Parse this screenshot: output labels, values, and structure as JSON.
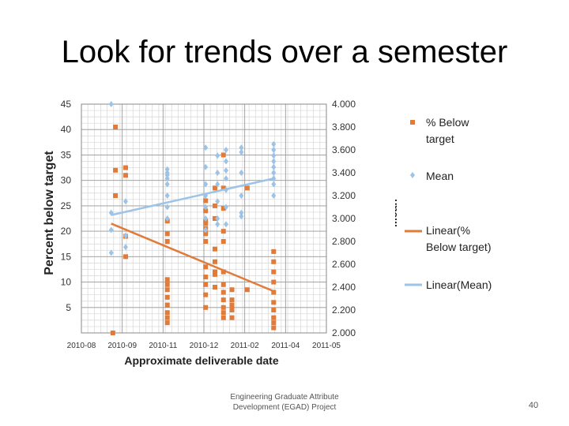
{
  "slide": {
    "title": "Look for trends over a semester",
    "footer_line1": "Engineering Graduate Attribute",
    "footer_line2": "Development (EGAD) Project",
    "page_number": "40"
  },
  "chart_data": {
    "type": "scatter",
    "xlabel": "Approximate deliverable date",
    "ylabel": "Percent below target",
    "y2label": "Mean",
    "x_ticks": [
      "2010-08",
      "2010-09",
      "2010-11",
      "2010-12",
      "2011-02",
      "2011-04",
      "2011-05"
    ],
    "xlim": [
      "2010-08-01",
      "2011-05-16"
    ],
    "y_ticks": [
      5,
      10,
      15,
      20,
      25,
      30,
      35,
      40,
      45
    ],
    "ylim": [
      0,
      45
    ],
    "y2_ticks": [
      "2.000",
      "2.200",
      "2.400",
      "2.600",
      "2.800",
      "3.000",
      "3.200",
      "3.400",
      "3.600",
      "3.800",
      "4.000"
    ],
    "y2lim": [
      2.0,
      4.0
    ],
    "grid": true,
    "legend_position": "right",
    "colors": {
      "below": "#e07b39",
      "mean": "#9dc3e6",
      "trend_below": "#e07b39",
      "trend_mean": "#9dc3e6"
    },
    "series": [
      {
        "name": "% Below target",
        "axis": "left",
        "marker": "square",
        "points": [
          [
            "2010-09-10",
            40.5
          ],
          [
            "2010-09-10",
            32
          ],
          [
            "2010-09-10",
            27
          ],
          [
            "2010-09-22",
            32.5
          ],
          [
            "2010-09-22",
            31
          ],
          [
            "2010-09-22",
            19
          ],
          [
            "2010-09-22",
            15
          ],
          [
            "2010-09-07",
            0
          ],
          [
            "2010-11-10",
            19.5
          ],
          [
            "2010-11-10",
            22
          ],
          [
            "2010-11-10",
            18
          ],
          [
            "2010-11-10",
            10.5
          ],
          [
            "2010-11-10",
            9.5
          ],
          [
            "2010-11-10",
            8.5
          ],
          [
            "2010-11-10",
            7
          ],
          [
            "2010-11-10",
            5.5
          ],
          [
            "2010-11-10",
            4
          ],
          [
            "2010-11-10",
            3
          ],
          [
            "2010-11-10",
            2
          ],
          [
            "2010-12-25",
            26
          ],
          [
            "2010-12-25",
            24
          ],
          [
            "2010-12-25",
            22
          ],
          [
            "2010-12-25",
            21.5
          ],
          [
            "2010-12-25",
            20.5
          ],
          [
            "2010-12-25",
            19.5
          ],
          [
            "2010-12-25",
            18
          ],
          [
            "2010-12-25",
            13
          ],
          [
            "2010-12-25",
            11
          ],
          [
            "2010-12-25",
            9.5
          ],
          [
            "2010-12-25",
            7.5
          ],
          [
            "2010-12-25",
            5
          ],
          [
            "2011-01-05",
            28.5
          ],
          [
            "2011-01-05",
            25
          ],
          [
            "2011-01-05",
            22.5
          ],
          [
            "2011-01-05",
            16.5
          ],
          [
            "2011-01-05",
            14
          ],
          [
            "2011-01-05",
            12
          ],
          [
            "2011-01-05",
            11.5
          ],
          [
            "2011-01-05",
            9
          ],
          [
            "2011-01-15",
            35
          ],
          [
            "2011-01-15",
            28.5
          ],
          [
            "2011-01-15",
            24.5
          ],
          [
            "2011-01-15",
            20
          ],
          [
            "2011-01-15",
            18
          ],
          [
            "2011-01-15",
            12
          ],
          [
            "2011-01-15",
            9.5
          ],
          [
            "2011-01-15",
            8
          ],
          [
            "2011-01-15",
            6.5
          ],
          [
            "2011-01-15",
            5
          ],
          [
            "2011-01-15",
            4
          ],
          [
            "2011-01-15",
            3
          ],
          [
            "2011-01-25",
            8.5
          ],
          [
            "2011-01-25",
            6.5
          ],
          [
            "2011-01-25",
            5.5
          ],
          [
            "2011-01-25",
            4.5
          ],
          [
            "2011-01-25",
            3
          ],
          [
            "2011-02-12",
            28.5
          ],
          [
            "2011-02-12",
            8.5
          ],
          [
            "2011-03-15",
            16
          ],
          [
            "2011-03-15",
            14
          ],
          [
            "2011-03-15",
            12
          ],
          [
            "2011-03-15",
            10
          ],
          [
            "2011-03-15",
            8
          ],
          [
            "2011-03-15",
            6
          ],
          [
            "2011-03-15",
            4.5
          ],
          [
            "2011-03-15",
            3
          ],
          [
            "2011-03-15",
            2
          ],
          [
            "2011-03-15",
            1
          ]
        ]
      },
      {
        "name": "Mean",
        "axis": "right",
        "marker": "diamond",
        "points": [
          [
            "2010-09-05",
            4.0
          ],
          [
            "2010-09-05",
            3.05
          ],
          [
            "2010-09-05",
            2.9
          ],
          [
            "2010-09-05",
            2.7
          ],
          [
            "2010-09-22",
            3.15
          ],
          [
            "2010-09-22",
            2.85
          ],
          [
            "2010-09-22",
            2.75
          ],
          [
            "2010-11-10",
            3.43
          ],
          [
            "2010-11-10",
            3.4
          ],
          [
            "2010-11-10",
            3.38
          ],
          [
            "2010-11-10",
            3.35
          ],
          [
            "2010-11-10",
            3.3
          ],
          [
            "2010-11-10",
            3.2
          ],
          [
            "2010-11-10",
            3.1
          ],
          [
            "2010-11-10",
            3.0
          ],
          [
            "2010-12-25",
            3.62
          ],
          [
            "2010-12-25",
            3.45
          ],
          [
            "2010-12-25",
            3.3
          ],
          [
            "2010-12-25",
            3.2
          ],
          [
            "2010-12-25",
            3.1
          ],
          [
            "2010-12-25",
            3.0
          ],
          [
            "2010-12-25",
            2.9
          ],
          [
            "2011-01-08",
            3.55
          ],
          [
            "2011-01-08",
            3.4
          ],
          [
            "2011-01-08",
            3.3
          ],
          [
            "2011-01-08",
            3.15
          ],
          [
            "2011-01-08",
            3.0
          ],
          [
            "2011-01-08",
            2.95
          ],
          [
            "2011-01-18",
            3.6
          ],
          [
            "2011-01-18",
            3.5
          ],
          [
            "2011-01-18",
            3.42
          ],
          [
            "2011-01-18",
            3.35
          ],
          [
            "2011-01-18",
            3.25
          ],
          [
            "2011-01-18",
            3.1
          ],
          [
            "2011-01-18",
            2.95
          ],
          [
            "2011-02-05",
            3.62
          ],
          [
            "2011-02-05",
            3.58
          ],
          [
            "2011-02-05",
            3.4
          ],
          [
            "2011-02-05",
            3.2
          ],
          [
            "2011-02-05",
            3.05
          ],
          [
            "2011-02-05",
            3.02
          ],
          [
            "2011-03-15",
            3.65
          ],
          [
            "2011-03-15",
            3.6
          ],
          [
            "2011-03-15",
            3.55
          ],
          [
            "2011-03-15",
            3.5
          ],
          [
            "2011-03-15",
            3.45
          ],
          [
            "2011-03-15",
            3.4
          ],
          [
            "2011-03-15",
            3.35
          ],
          [
            "2011-03-15",
            3.3
          ],
          [
            "2011-03-15",
            3.2
          ]
        ]
      }
    ],
    "trendlines": [
      {
        "name": "Linear(% Below target)",
        "axis": "left",
        "from": [
          "2010-09-05",
          21.5
        ],
        "to": [
          "2011-03-15",
          8.2
        ]
      },
      {
        "name": "Linear(Mean)",
        "axis": "right",
        "from": [
          "2010-09-05",
          3.03
        ],
        "to": [
          "2011-03-15",
          3.35
        ]
      }
    ],
    "legend": [
      {
        "label": "% Below target",
        "kind": "marker-square"
      },
      {
        "label": "Mean",
        "kind": "marker-diamond"
      },
      {
        "label": "Linear(% Below target)",
        "kind": "line-orange"
      },
      {
        "label": "Linear(Mean)",
        "kind": "line-blue"
      }
    ]
  }
}
